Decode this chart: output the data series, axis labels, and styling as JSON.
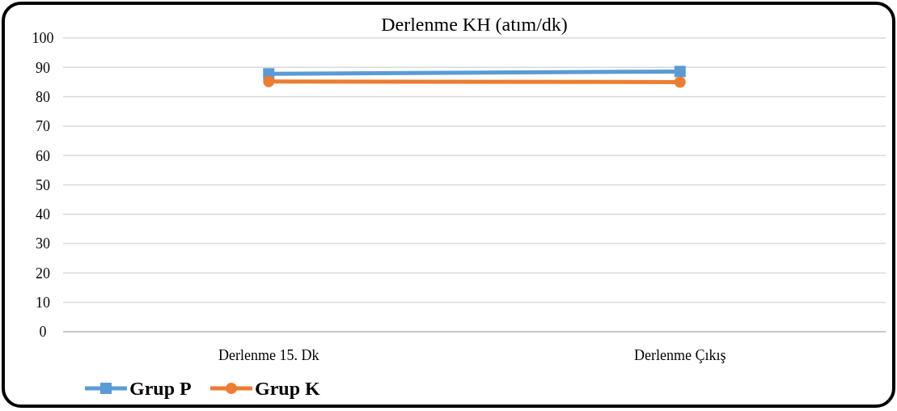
{
  "chart_data": {
    "type": "line",
    "title": "Derlenme KH (atım/dk)",
    "categories": [
      "Derlenme 15. Dk",
      "Derlenme Çıkış"
    ],
    "series": [
      {
        "name": "Grup P",
        "color": "#5b9bd5",
        "marker": "square",
        "values": [
          87.8,
          88.6
        ]
      },
      {
        "name": "Grup K",
        "color": "#ed7d31",
        "marker": "circle",
        "values": [
          85.2,
          85.0
        ]
      }
    ],
    "ylim": [
      0,
      100
    ],
    "yticks": [
      0,
      10,
      20,
      30,
      40,
      50,
      60,
      70,
      80,
      90,
      100
    ],
    "grid": "y",
    "legend": "bottom left"
  }
}
